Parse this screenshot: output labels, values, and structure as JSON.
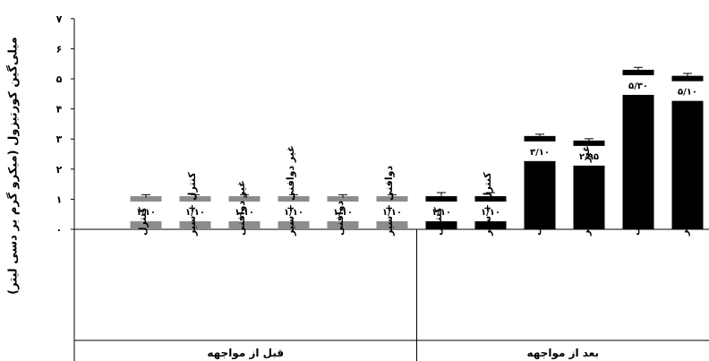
{
  "chart_data": {
    "type": "bar",
    "ylabel": "میلی‌گین کورتیزول (میکرو گرم بر دسی لیتر)",
    "ylim": [
      0,
      7
    ],
    "y_ticks": [
      {
        "value": 0,
        "label": "۰"
      },
      {
        "value": 1,
        "label": "۱"
      },
      {
        "value": 2,
        "label": "۲"
      },
      {
        "value": 3,
        "label": "۳"
      },
      {
        "value": 4,
        "label": "۴"
      },
      {
        "value": 5,
        "label": "۵"
      },
      {
        "value": 6,
        "label": "۶"
      },
      {
        "value": 7,
        "label": "۷"
      }
    ],
    "groups": [
      {
        "name": "قبل از مواجهه",
        "color": "#8c8c8c",
        "categories": [
          "کنترل",
          "کنترل + سیر",
          "غیر دوافنی",
          "غیر دوافنی + سیر",
          "دوافنی",
          "دوافنی + سیر"
        ],
        "values": [
          1.1,
          1.1,
          1.1,
          1.1,
          1.1,
          1.1
        ],
        "labels": [
          "۱/۱۰",
          "۱/۱۰",
          "۱/۱۰",
          "۱/۱۰",
          "۱/۱۰",
          "۱/۱۰"
        ],
        "errors": [
          0.05,
          0.05,
          0.05,
          0.05,
          0.05,
          0.05
        ]
      },
      {
        "name": "بعد از مواجهه",
        "color": "#000000",
        "categories": [
          "کنترل",
          "کنترل + سیر",
          "غیر دوافنی",
          "غیر دوافنی + سیر",
          "دوافنی",
          "دوافنی + سیر"
        ],
        "values": [
          1.1,
          1.1,
          3.1,
          2.95,
          5.3,
          5.1
        ],
        "labels": [
          "۱/۱۰",
          "۱/۱۰",
          "۳/۱۰",
          "۲/۹۵",
          "۵/۳۰",
          "۵/۱۰"
        ],
        "errors": [
          0.12,
          0.12,
          0.06,
          0.06,
          0.08,
          0.08
        ]
      }
    ]
  }
}
